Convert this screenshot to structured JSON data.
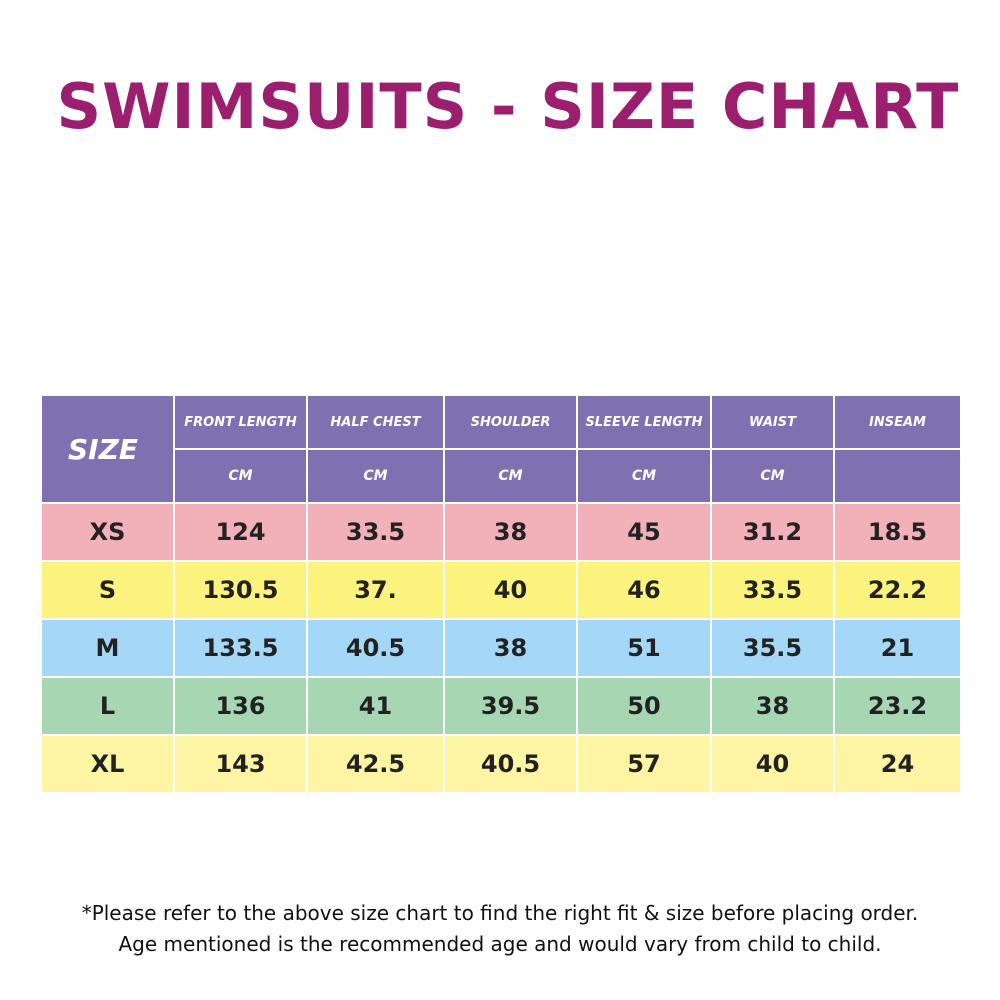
{
  "title": "SWIMSUITS - SIZE CHART",
  "colors": {
    "title": "#9b1f6e",
    "header": "#7f70b2",
    "row_xs": "#f2b1b8",
    "row_s": "#fbf37e",
    "row_m": "#a5d8f6",
    "row_l": "#a6d7b2",
    "row_xl": "#fdf5a4"
  },
  "table": {
    "size_header": "SIZE",
    "columns": [
      {
        "label": "FRONT LENGTH",
        "unit": "CM"
      },
      {
        "label": "HALF CHEST",
        "unit": "CM"
      },
      {
        "label": "SHOULDER",
        "unit": "CM"
      },
      {
        "label": "SLEEVE LENGTH",
        "unit": "CM"
      },
      {
        "label": "WAIST",
        "unit": "CM"
      },
      {
        "label": "INSEAM",
        "unit": ""
      }
    ],
    "rows": [
      {
        "size": "XS",
        "values": [
          "124",
          "33.5",
          "38",
          "45",
          "31.2",
          "18.5"
        ]
      },
      {
        "size": "S",
        "values": [
          "130.5",
          "37.",
          "40",
          "46",
          "33.5",
          "22.2"
        ]
      },
      {
        "size": "M",
        "values": [
          "133.5",
          "40.5",
          "38",
          "51",
          "35.5",
          "21"
        ]
      },
      {
        "size": "L",
        "values": [
          "136",
          "41",
          "39.5",
          "50",
          "38",
          "23.2"
        ]
      },
      {
        "size": "XL",
        "values": [
          "143",
          "42.5",
          "40.5",
          "57",
          "40",
          "24"
        ]
      }
    ]
  },
  "notes": {
    "line1": "*Please refer to the above size chart to find the right fit & size before placing order.",
    "line2": "Age mentioned is the recommended age and would vary from child to child."
  }
}
